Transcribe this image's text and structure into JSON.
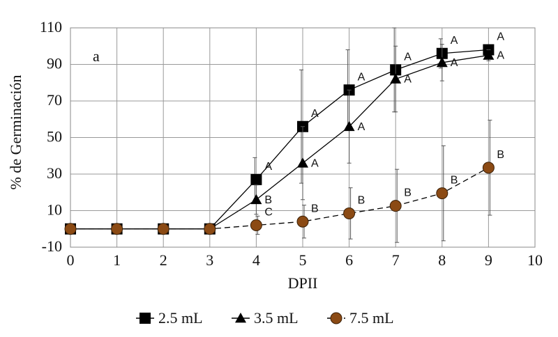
{
  "chart_data": {
    "type": "line",
    "panel_label": "a",
    "xlabel": "DPII",
    "ylabel": "% de Germinación",
    "xlim": [
      0,
      10
    ],
    "ylim": [
      -10,
      110
    ],
    "xticks": [
      "0",
      "1",
      "2",
      "3",
      "4",
      "5",
      "6",
      "7",
      "8",
      "9",
      "10"
    ],
    "yticks": [
      "-10",
      "10",
      "30",
      "50",
      "70",
      "90",
      "110"
    ],
    "grid": true,
    "legend_position": "bottom",
    "x": [
      0,
      1,
      2,
      3,
      4,
      5,
      6,
      7,
      8,
      9
    ],
    "series": [
      {
        "name": "2.5 mL",
        "marker": "square",
        "line": "solid",
        "color": "#000000",
        "values": [
          0,
          0,
          0,
          0,
          27,
          56,
          76,
          87,
          96,
          98
        ],
        "errors": [
          0,
          0,
          0,
          0,
          12,
          31,
          22,
          23,
          8,
          2
        ],
        "letters": [
          "",
          "",
          "",
          "",
          "A",
          "A",
          "A",
          "A",
          "A",
          "A"
        ]
      },
      {
        "name": "3.5 mL",
        "marker": "triangle",
        "line": "solid",
        "color": "#000000",
        "values": [
          0,
          0,
          0,
          0,
          16,
          36,
          56,
          82,
          91,
          95
        ],
        "errors": [
          0,
          0,
          0,
          0,
          8,
          20,
          20,
          18,
          10,
          3
        ],
        "letters": [
          "",
          "",
          "",
          "",
          "B",
          "A",
          "A",
          "A",
          "A",
          "A"
        ]
      },
      {
        "name": "7.5 mL",
        "marker": "circle",
        "line": "dashed",
        "color": "#8B4A14",
        "values": [
          0,
          0,
          0,
          0,
          2,
          4,
          8.5,
          12.6,
          19.5,
          33.5
        ],
        "errors": [
          0,
          0,
          0,
          0,
          5,
          9,
          14,
          20,
          26,
          26
        ],
        "letters": [
          "",
          "",
          "",
          "",
          "C",
          "B",
          "B",
          "B",
          "B",
          "B"
        ]
      }
    ]
  }
}
